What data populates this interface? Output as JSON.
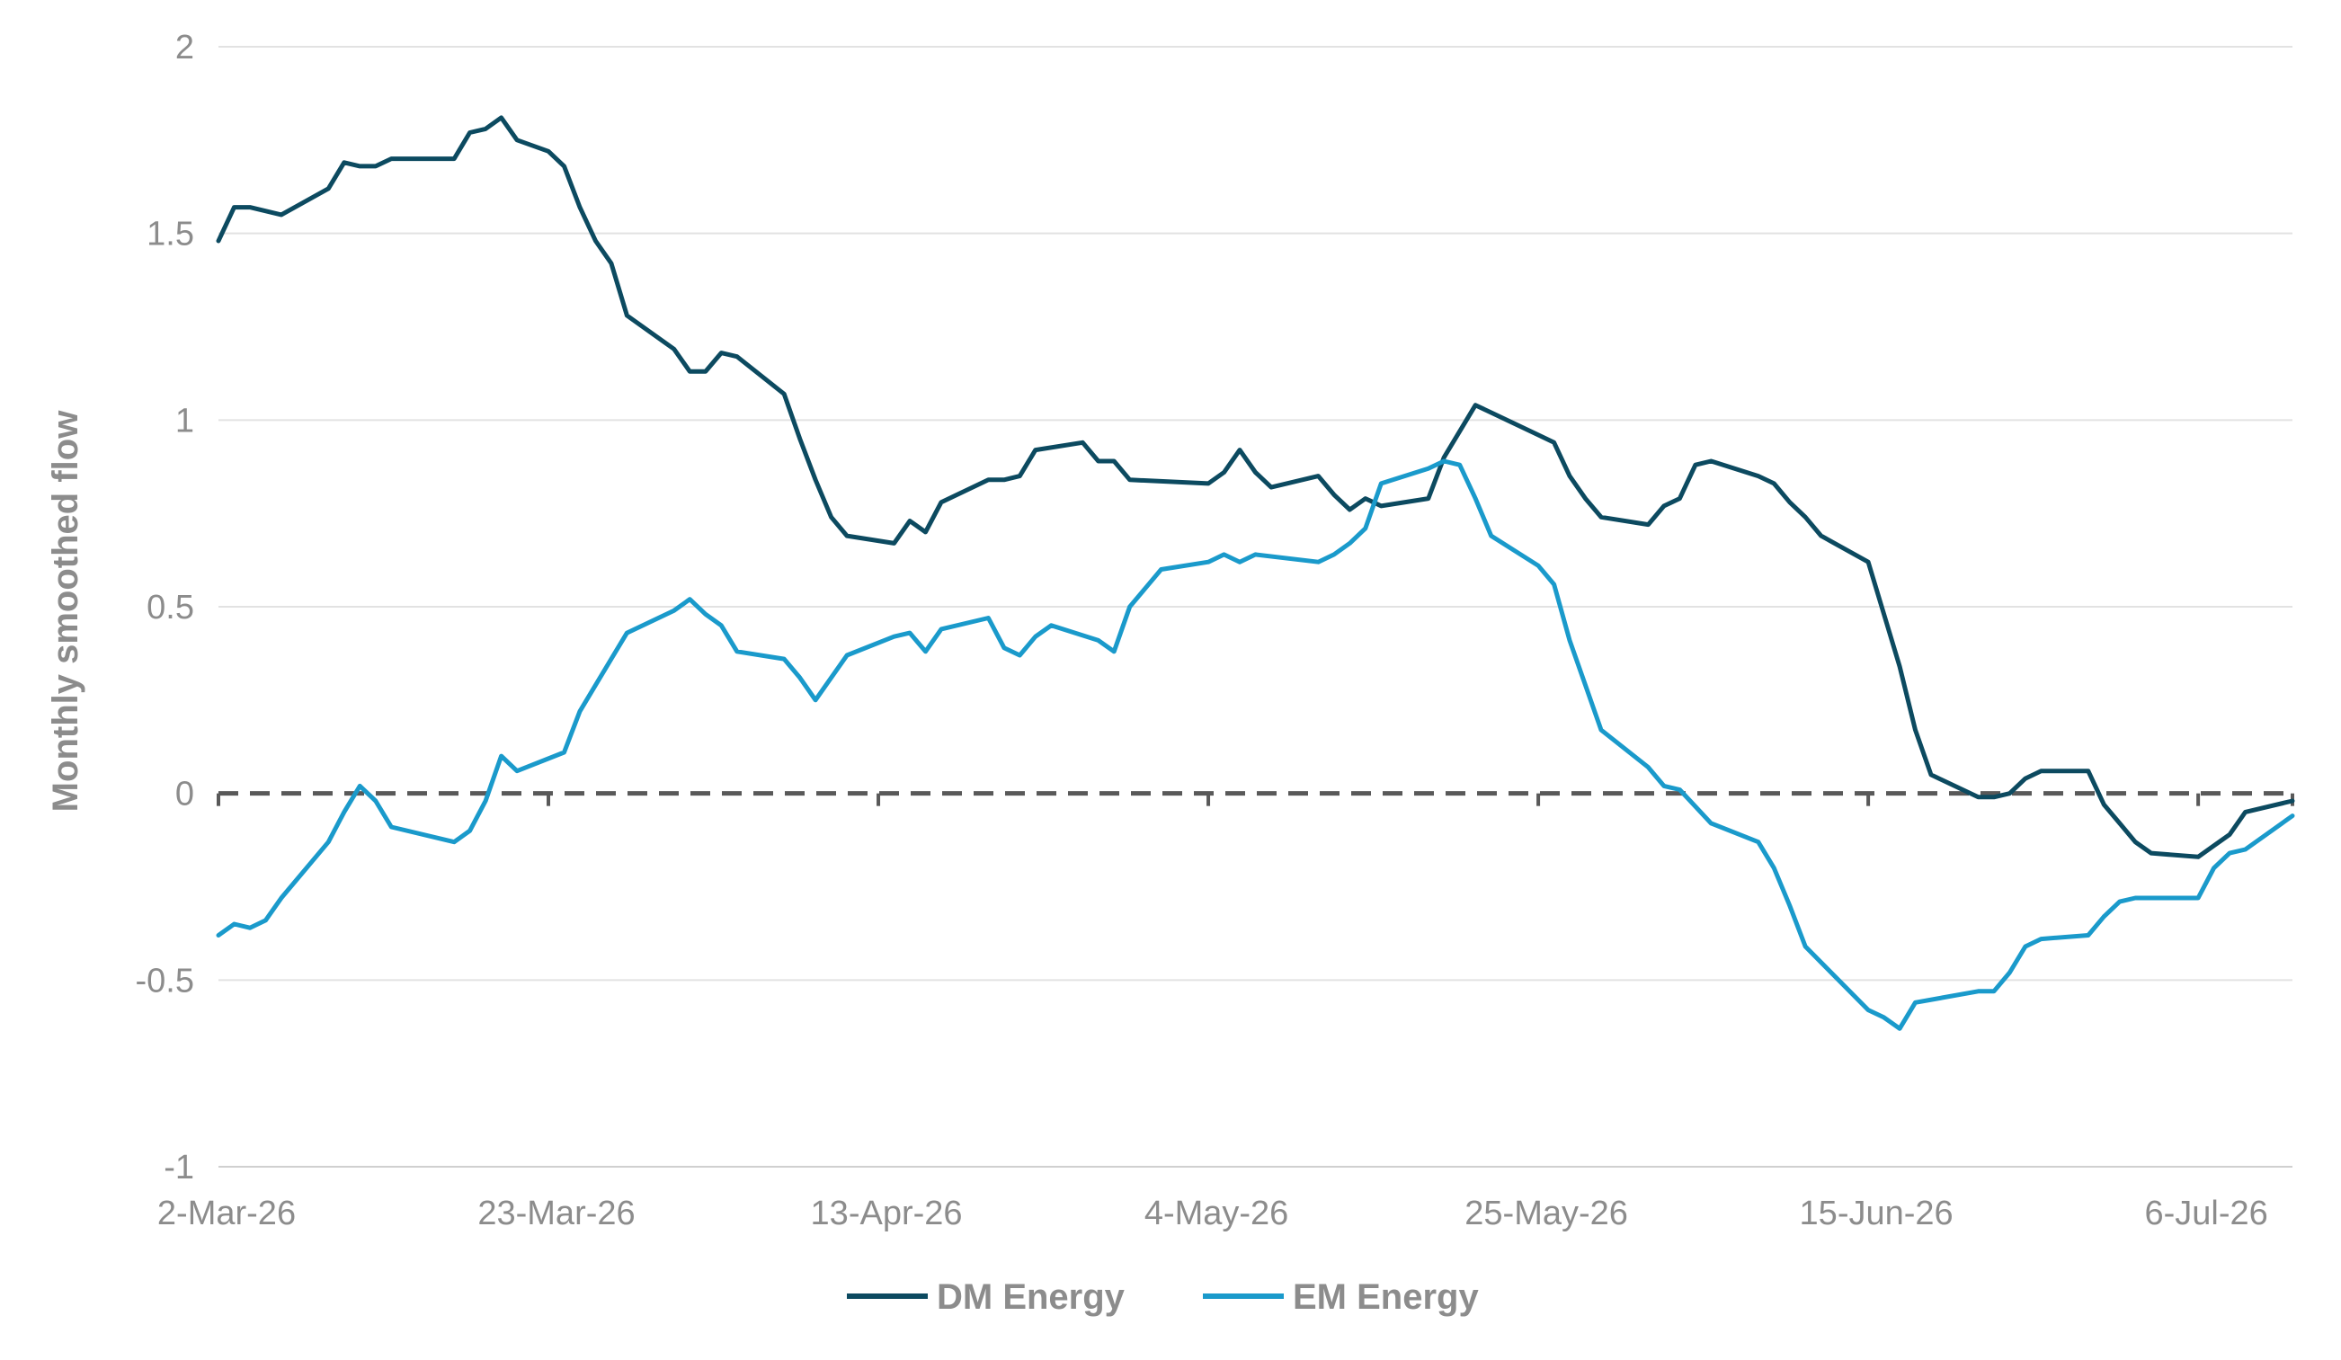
{
  "chart_data": {
    "type": "line",
    "ylabel": "Monthly smoothed flow",
    "xlabel": "",
    "ylim": [
      -1,
      2
    ],
    "yticks": [
      2,
      1.5,
      1,
      0.5,
      0,
      -0.5,
      -1
    ],
    "ytick_labels": [
      "2",
      "1.5",
      "1",
      "0.5",
      "0",
      "-0.5",
      "-1"
    ],
    "x_range": [
      "2026-03-02",
      "2026-07-12"
    ],
    "xticks": [
      "2026-03-02",
      "2026-03-23",
      "2026-04-13",
      "2026-05-04",
      "2026-05-25",
      "2026-06-15",
      "2026-07-06"
    ],
    "xtick_labels": [
      "2-Mar-26",
      "23-Mar-26",
      "13-Apr-26",
      "4-May-26",
      "25-May-26",
      "15-Jun-26",
      "6-Jul-26"
    ],
    "grid": "horizontal",
    "zero_line": "dashed",
    "legend": "bottom",
    "series": [
      {
        "name": "DM Energy",
        "color": "#0c4a60",
        "points": [
          [
            "2026-03-02",
            1.48
          ],
          [
            "2026-03-03",
            1.57
          ],
          [
            "2026-03-04",
            1.57
          ],
          [
            "2026-03-06",
            1.55
          ],
          [
            "2026-03-09",
            1.62
          ],
          [
            "2026-03-10",
            1.69
          ],
          [
            "2026-03-11",
            1.68
          ],
          [
            "2026-03-12",
            1.68
          ],
          [
            "2026-03-13",
            1.7
          ],
          [
            "2026-03-17",
            1.7
          ],
          [
            "2026-03-18",
            1.77
          ],
          [
            "2026-03-19",
            1.78
          ],
          [
            "2026-03-20",
            1.81
          ],
          [
            "2026-03-21",
            1.75
          ],
          [
            "2026-03-23",
            1.72
          ],
          [
            "2026-03-24",
            1.68
          ],
          [
            "2026-03-25",
            1.57
          ],
          [
            "2026-03-26",
            1.48
          ],
          [
            "2026-03-27",
            1.42
          ],
          [
            "2026-03-28",
            1.28
          ],
          [
            "2026-03-31",
            1.19
          ],
          [
            "2026-04-01",
            1.13
          ],
          [
            "2026-04-02",
            1.13
          ],
          [
            "2026-04-03",
            1.18
          ],
          [
            "2026-04-04",
            1.17
          ],
          [
            "2026-04-07",
            1.07
          ],
          [
            "2026-04-08",
            0.95
          ],
          [
            "2026-04-09",
            0.84
          ],
          [
            "2026-04-10",
            0.74
          ],
          [
            "2026-04-11",
            0.69
          ],
          [
            "2026-04-14",
            0.67
          ],
          [
            "2026-04-15",
            0.73
          ],
          [
            "2026-04-16",
            0.7
          ],
          [
            "2026-04-17",
            0.78
          ],
          [
            "2026-04-20",
            0.84
          ],
          [
            "2026-04-21",
            0.84
          ],
          [
            "2026-04-22",
            0.85
          ],
          [
            "2026-04-23",
            0.92
          ],
          [
            "2026-04-26",
            0.94
          ],
          [
            "2026-04-27",
            0.89
          ],
          [
            "2026-04-28",
            0.89
          ],
          [
            "2026-04-29",
            0.84
          ],
          [
            "2026-05-04",
            0.83
          ],
          [
            "2026-05-05",
            0.86
          ],
          [
            "2026-05-06",
            0.92
          ],
          [
            "2026-05-07",
            0.86
          ],
          [
            "2026-05-08",
            0.82
          ],
          [
            "2026-05-11",
            0.85
          ],
          [
            "2026-05-12",
            0.8
          ],
          [
            "2026-05-13",
            0.76
          ],
          [
            "2026-05-14",
            0.79
          ],
          [
            "2026-05-15",
            0.77
          ],
          [
            "2026-05-18",
            0.79
          ],
          [
            "2026-05-19",
            0.9
          ],
          [
            "2026-05-20",
            0.97
          ],
          [
            "2026-05-21",
            1.04
          ],
          [
            "2026-05-22",
            1.02
          ],
          [
            "2026-05-25",
            0.96
          ],
          [
            "2026-05-26",
            0.94
          ],
          [
            "2026-05-27",
            0.85
          ],
          [
            "2026-05-28",
            0.79
          ],
          [
            "2026-05-29",
            0.74
          ],
          [
            "2026-06-01",
            0.72
          ],
          [
            "2026-06-02",
            0.77
          ],
          [
            "2026-06-03",
            0.79
          ],
          [
            "2026-06-04",
            0.88
          ],
          [
            "2026-06-05",
            0.89
          ],
          [
            "2026-06-08",
            0.85
          ],
          [
            "2026-06-09",
            0.83
          ],
          [
            "2026-06-10",
            0.78
          ],
          [
            "2026-06-11",
            0.74
          ],
          [
            "2026-06-12",
            0.69
          ],
          [
            "2026-06-15",
            0.62
          ],
          [
            "2026-06-16",
            0.48
          ],
          [
            "2026-06-17",
            0.34
          ],
          [
            "2026-06-18",
            0.17
          ],
          [
            "2026-06-19",
            0.05
          ],
          [
            "2026-06-22",
            -0.01
          ],
          [
            "2026-06-23",
            -0.01
          ],
          [
            "2026-06-24",
            0.0
          ],
          [
            "2026-06-25",
            0.04
          ],
          [
            "2026-06-26",
            0.06
          ],
          [
            "2026-06-29",
            0.06
          ],
          [
            "2026-06-30",
            -0.03
          ],
          [
            "2026-07-01",
            -0.08
          ],
          [
            "2026-07-02",
            -0.13
          ],
          [
            "2026-07-03",
            -0.16
          ],
          [
            "2026-07-06",
            -0.17
          ],
          [
            "2026-07-07",
            -0.14
          ],
          [
            "2026-07-08",
            -0.11
          ],
          [
            "2026-07-09",
            -0.05
          ],
          [
            "2026-07-12",
            -0.02
          ]
        ]
      },
      {
        "name": "EM Energy",
        "color": "#1a9acb",
        "points": [
          [
            "2026-03-02",
            -0.38
          ],
          [
            "2026-03-03",
            -0.35
          ],
          [
            "2026-03-04",
            -0.36
          ],
          [
            "2026-03-05",
            -0.34
          ],
          [
            "2026-03-06",
            -0.28
          ],
          [
            "2026-03-09",
            -0.13
          ],
          [
            "2026-03-10",
            -0.05
          ],
          [
            "2026-03-11",
            0.02
          ],
          [
            "2026-03-12",
            -0.02
          ],
          [
            "2026-03-13",
            -0.09
          ],
          [
            "2026-03-17",
            -0.13
          ],
          [
            "2026-03-18",
            -0.1
          ],
          [
            "2026-03-19",
            -0.02
          ],
          [
            "2026-03-20",
            0.1
          ],
          [
            "2026-03-21",
            0.06
          ],
          [
            "2026-03-24",
            0.11
          ],
          [
            "2026-03-25",
            0.22
          ],
          [
            "2026-03-27",
            0.36
          ],
          [
            "2026-03-28",
            0.43
          ],
          [
            "2026-03-31",
            0.49
          ],
          [
            "2026-04-01",
            0.52
          ],
          [
            "2026-04-02",
            0.48
          ],
          [
            "2026-04-03",
            0.45
          ],
          [
            "2026-04-04",
            0.38
          ],
          [
            "2026-04-07",
            0.36
          ],
          [
            "2026-04-08",
            0.31
          ],
          [
            "2026-04-09",
            0.25
          ],
          [
            "2026-04-11",
            0.37
          ],
          [
            "2026-04-14",
            0.42
          ],
          [
            "2026-04-15",
            0.43
          ],
          [
            "2026-04-16",
            0.38
          ],
          [
            "2026-04-17",
            0.44
          ],
          [
            "2026-04-20",
            0.47
          ],
          [
            "2026-04-21",
            0.39
          ],
          [
            "2026-04-22",
            0.37
          ],
          [
            "2026-04-23",
            0.42
          ],
          [
            "2026-04-24",
            0.45
          ],
          [
            "2026-04-27",
            0.41
          ],
          [
            "2026-04-28",
            0.38
          ],
          [
            "2026-04-29",
            0.5
          ],
          [
            "2026-04-30",
            0.55
          ],
          [
            "2026-05-01",
            0.6
          ],
          [
            "2026-05-04",
            0.62
          ],
          [
            "2026-05-05",
            0.64
          ],
          [
            "2026-05-06",
            0.62
          ],
          [
            "2026-05-07",
            0.64
          ],
          [
            "2026-05-11",
            0.62
          ],
          [
            "2026-05-12",
            0.64
          ],
          [
            "2026-05-13",
            0.67
          ],
          [
            "2026-05-14",
            0.71
          ],
          [
            "2026-05-15",
            0.83
          ],
          [
            "2026-05-18",
            0.87
          ],
          [
            "2026-05-19",
            0.89
          ],
          [
            "2026-05-20",
            0.88
          ],
          [
            "2026-05-21",
            0.79
          ],
          [
            "2026-05-22",
            0.69
          ],
          [
            "2026-05-25",
            0.61
          ],
          [
            "2026-05-26",
            0.56
          ],
          [
            "2026-05-27",
            0.41
          ],
          [
            "2026-05-28",
            0.29
          ],
          [
            "2026-05-29",
            0.17
          ],
          [
            "2026-06-01",
            0.07
          ],
          [
            "2026-06-02",
            0.02
          ],
          [
            "2026-06-03",
            0.01
          ],
          [
            "2026-06-05",
            -0.08
          ],
          [
            "2026-06-08",
            -0.13
          ],
          [
            "2026-06-09",
            -0.2
          ],
          [
            "2026-06-10",
            -0.3
          ],
          [
            "2026-06-11",
            -0.41
          ],
          [
            "2026-06-15",
            -0.58
          ],
          [
            "2026-06-16",
            -0.6
          ],
          [
            "2026-06-17",
            -0.63
          ],
          [
            "2026-06-18",
            -0.56
          ],
          [
            "2026-06-22",
            -0.53
          ],
          [
            "2026-06-23",
            -0.53
          ],
          [
            "2026-06-24",
            -0.48
          ],
          [
            "2026-06-25",
            -0.41
          ],
          [
            "2026-06-26",
            -0.39
          ],
          [
            "2026-06-29",
            -0.38
          ],
          [
            "2026-06-30",
            -0.33
          ],
          [
            "2026-07-01",
            -0.29
          ],
          [
            "2026-07-02",
            -0.28
          ],
          [
            "2026-07-06",
            -0.28
          ],
          [
            "2026-07-07",
            -0.2
          ],
          [
            "2026-07-08",
            -0.16
          ],
          [
            "2026-07-09",
            -0.15
          ],
          [
            "2026-07-12",
            -0.06
          ]
        ]
      }
    ]
  }
}
